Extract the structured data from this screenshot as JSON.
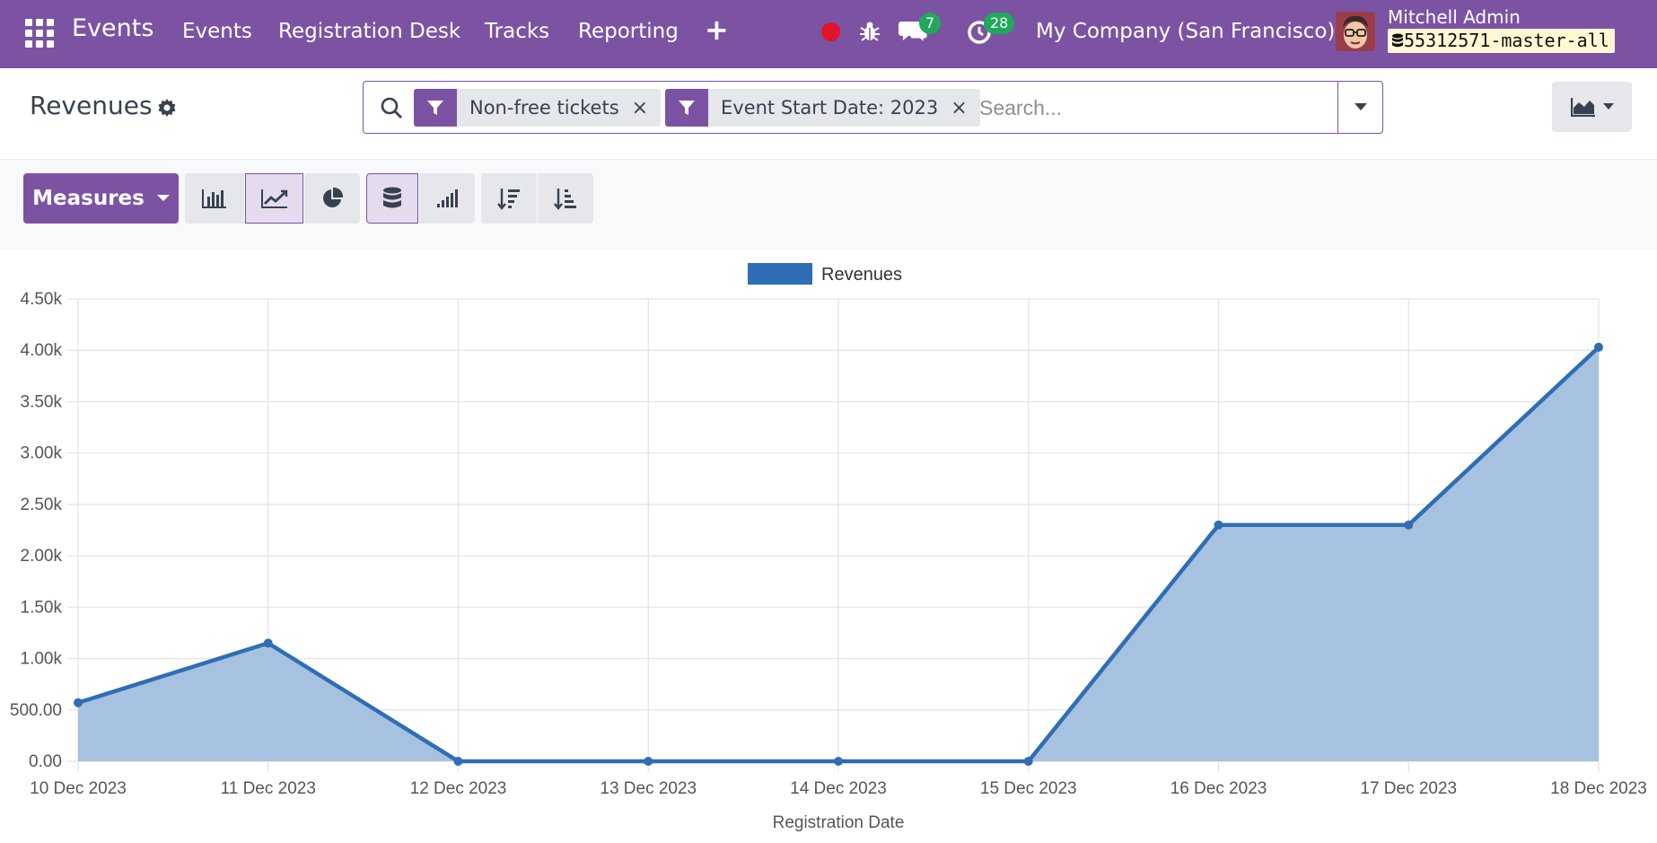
{
  "navbar": {
    "brand": "Events",
    "menu": [
      "Events",
      "Registration Desk",
      "Tracks",
      "Reporting"
    ],
    "chat_count": "7",
    "activity_count": "28",
    "company": "My Company (San Francisco)",
    "user_name": "Mitchell Admin",
    "db_name": "55312571-master-all"
  },
  "control_panel": {
    "title": "Revenues",
    "facets": [
      "Non-free tickets",
      "Event Start Date: 2023"
    ],
    "search_placeholder": "Search..."
  },
  "toolbar": {
    "measures_label": "Measures"
  },
  "colors": {
    "brand": "#7c53a3",
    "series": "#2f6db5",
    "area": "#a6c2e0"
  },
  "chart_data": {
    "type": "area",
    "xlabel": "Registration Date",
    "ylabel": "",
    "legend": "top",
    "grid": true,
    "ylim": [
      0,
      4500
    ],
    "yticks": [
      "0.00",
      "500.00",
      "1.00k",
      "1.50k",
      "2.00k",
      "2.50k",
      "3.00k",
      "3.50k",
      "4.00k",
      "4.50k"
    ],
    "categories": [
      "10 Dec 2023",
      "11 Dec 2023",
      "12 Dec 2023",
      "13 Dec 2023",
      "14 Dec 2023",
      "15 Dec 2023",
      "16 Dec 2023",
      "17 Dec 2023",
      "18 Dec 2023"
    ],
    "series": [
      {
        "name": "Revenues",
        "values": [
          570,
          1150,
          0,
          0,
          0,
          0,
          2300,
          2300,
          4030
        ]
      }
    ]
  }
}
